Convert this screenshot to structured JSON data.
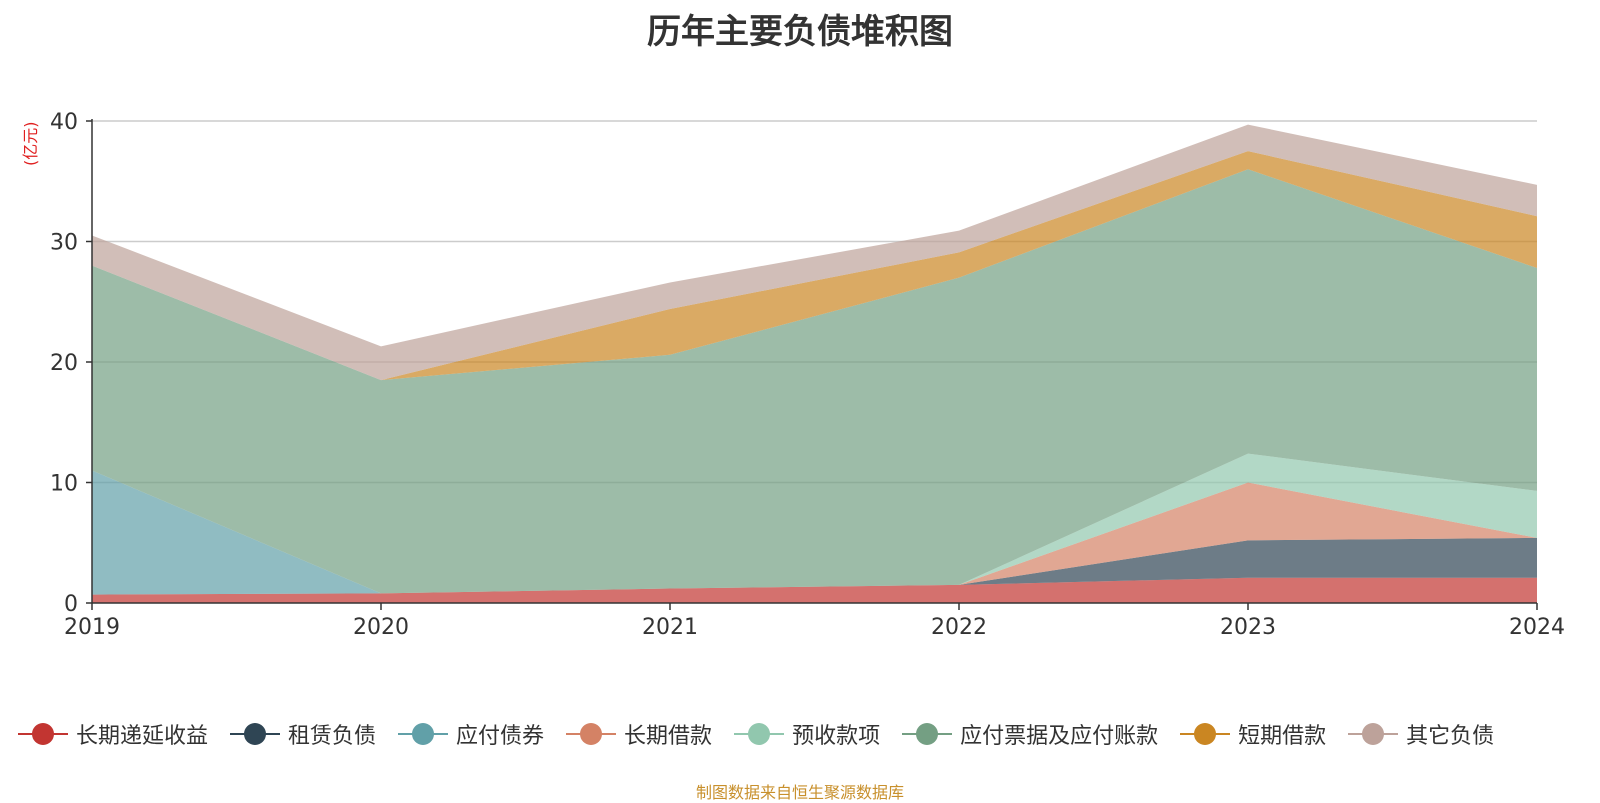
{
  "chart_data": {
    "type": "area",
    "title": "历年主要负债堆积图",
    "unit_label": "(亿元)",
    "source": "制图数据来自恒生聚源数据库",
    "categories": [
      "2019",
      "2020",
      "2021",
      "2022",
      "2023",
      "2024"
    ],
    "ylim": [
      0,
      40
    ],
    "yticks": [
      0,
      10,
      20,
      30,
      40
    ],
    "grid": true,
    "legend_position": "bottom",
    "stacked": true,
    "series": [
      {
        "name": "长期递延收益",
        "color": "#c23531",
        "values": [
          0.7,
          0.8,
          1.2,
          1.5,
          2.1,
          2.1
        ]
      },
      {
        "name": "租赁负债",
        "color": "#2f4554",
        "values": [
          0,
          0,
          0,
          0,
          3.1,
          3.3
        ]
      },
      {
        "name": "应付债券",
        "color": "#61a0a8",
        "values": [
          10.3,
          0,
          0,
          0,
          0,
          0
        ]
      },
      {
        "name": "长期借款",
        "color": "#d48265",
        "values": [
          0,
          0,
          0,
          0,
          4.8,
          0
        ]
      },
      {
        "name": "预收款项",
        "color": "#91c7ae",
        "values": [
          0,
          0,
          0,
          0,
          2.4,
          3.9
        ]
      },
      {
        "name": "应付票据及应付账款",
        "color": "#749f83",
        "values": [
          17.0,
          17.7,
          19.4,
          25.5,
          23.6,
          18.5
        ]
      },
      {
        "name": "短期借款",
        "color": "#ca8622",
        "values": [
          0,
          0,
          3.8,
          2.1,
          1.5,
          4.3
        ]
      },
      {
        "name": "其它负债",
        "color": "#bda29a",
        "values": [
          2.5,
          2.8,
          2.2,
          1.8,
          2.2,
          2.6
        ]
      }
    ]
  }
}
